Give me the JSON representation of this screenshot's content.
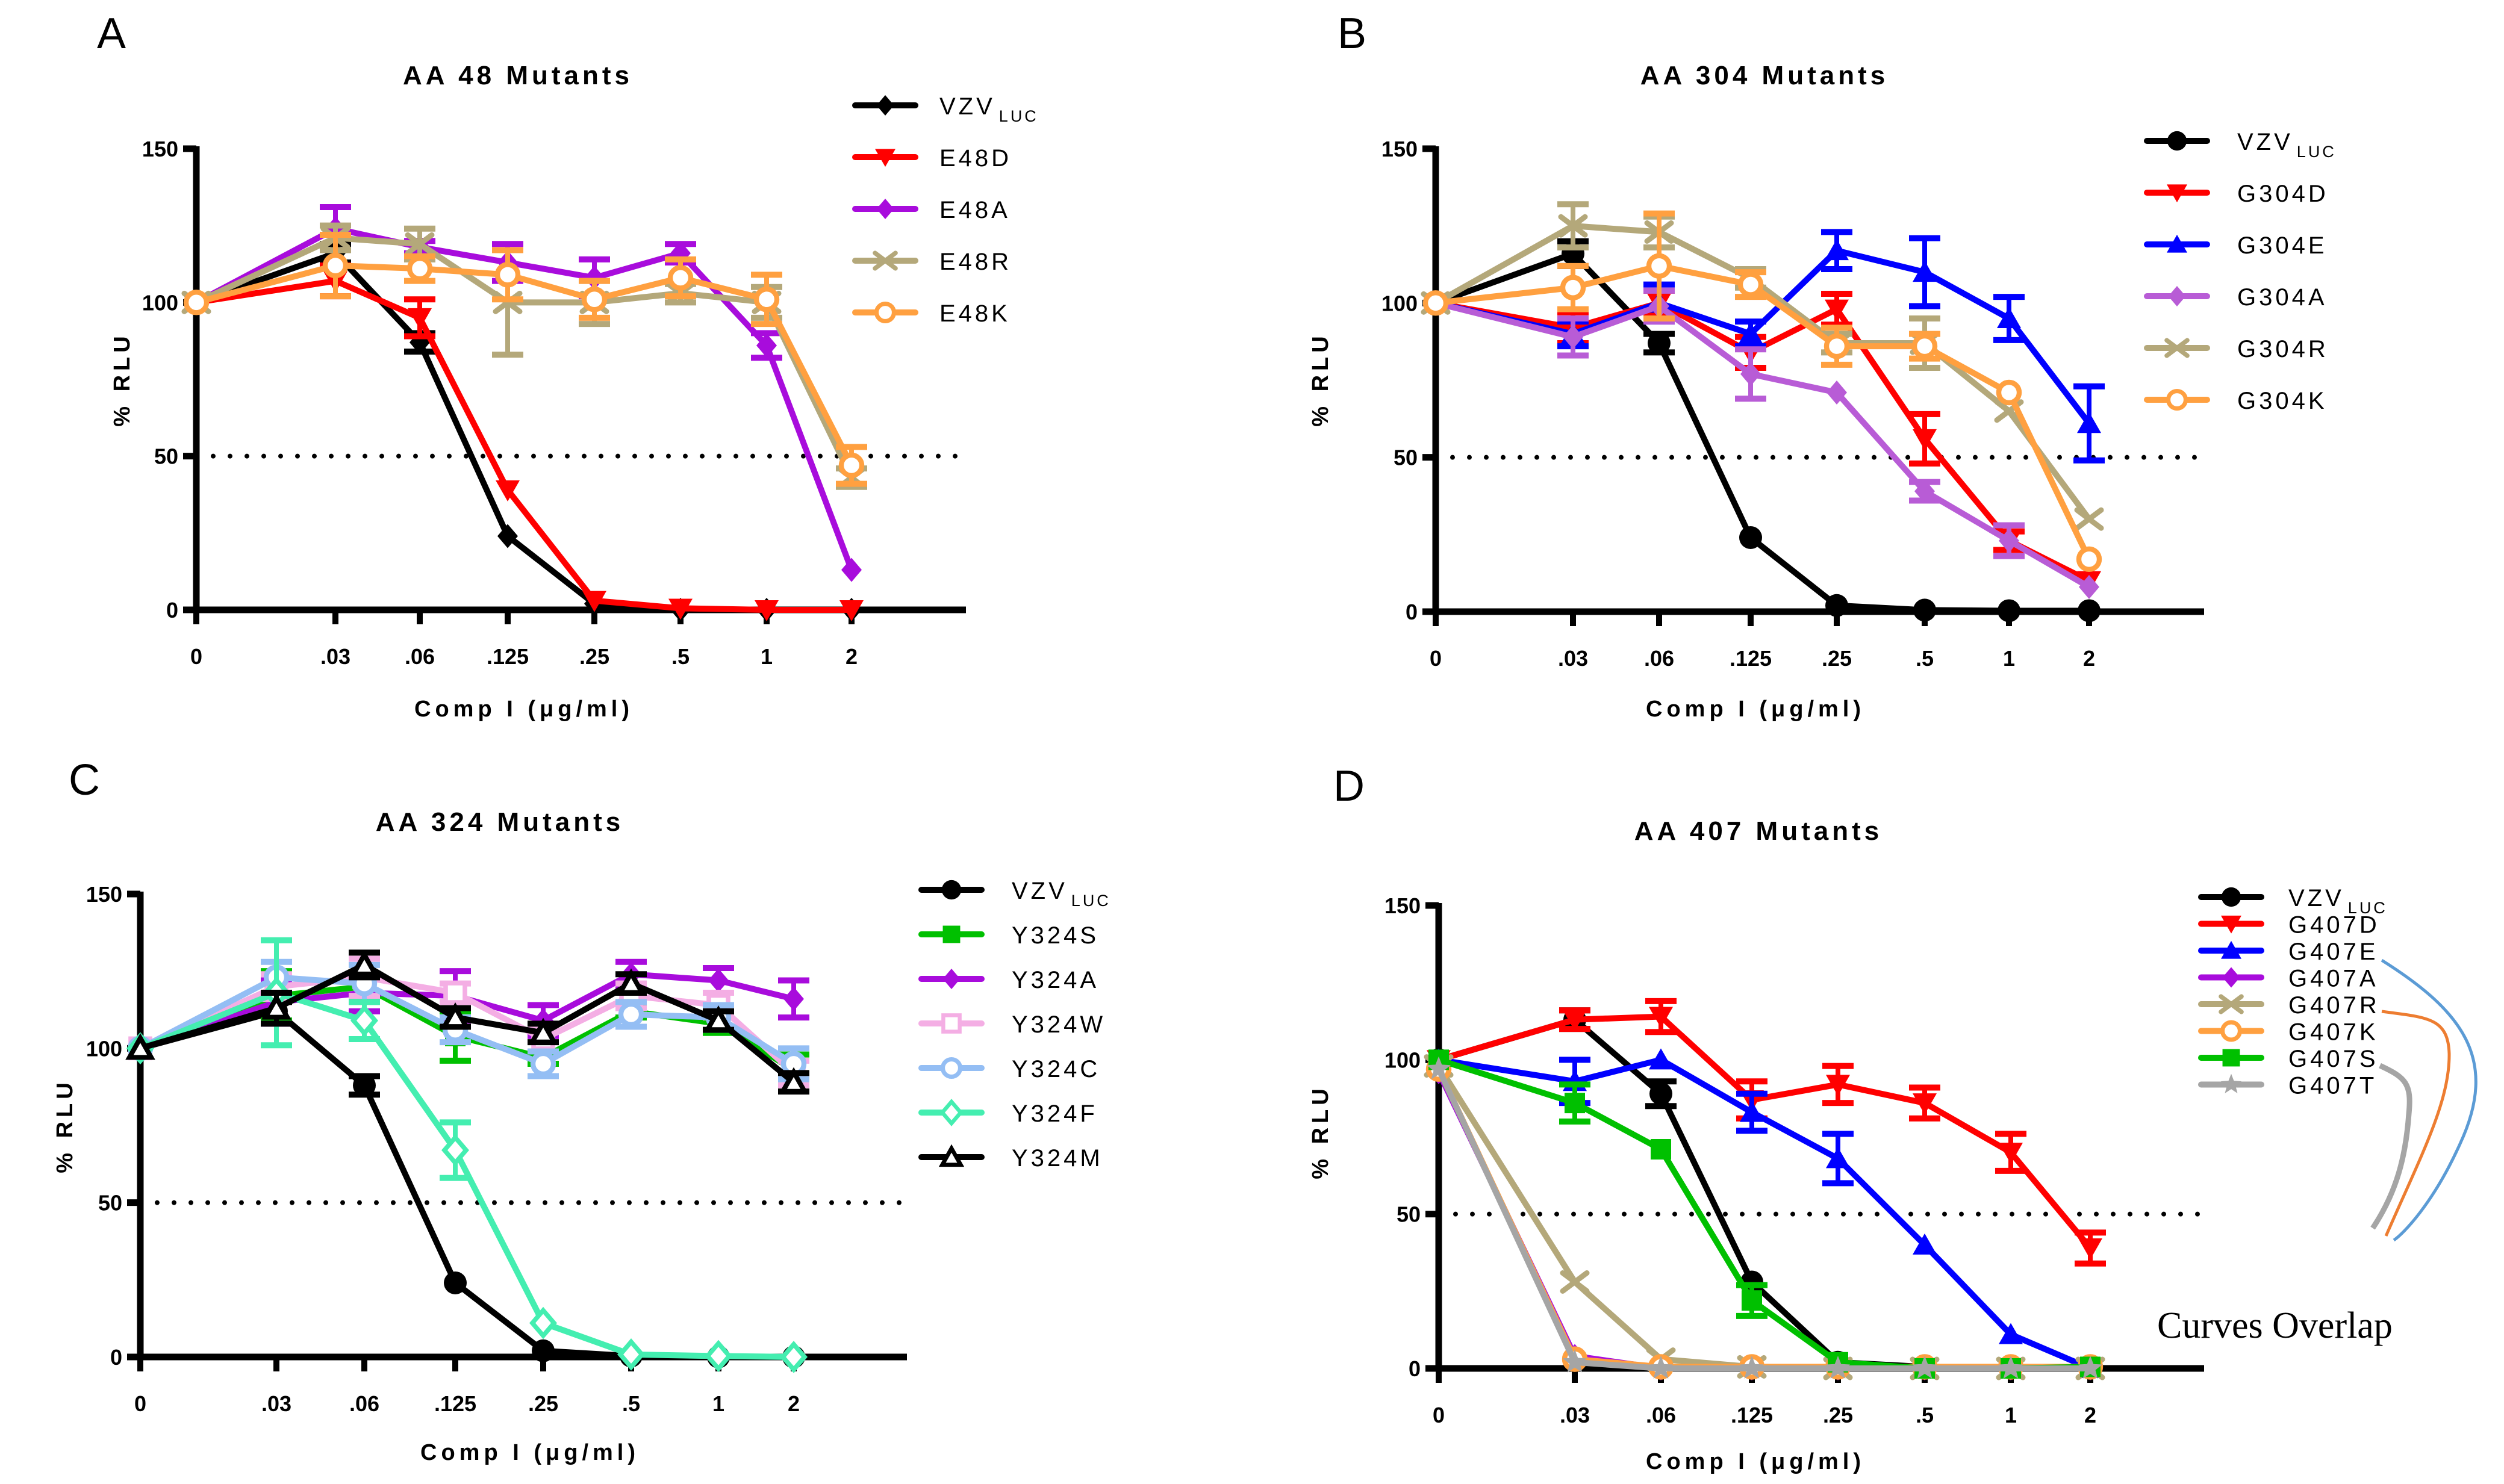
{
  "figure": {
    "panels": [
      "A",
      "B",
      "C",
      "D"
    ]
  },
  "chart_data": [
    {
      "panel": "A",
      "type": "line",
      "title": "AA 48 Mutants",
      "xlabel": "Comp I (μg/ml)",
      "ylabel": "% RLU",
      "x": [
        "0",
        ".03",
        ".06",
        ".125",
        ".25",
        ".5",
        "1",
        "2"
      ],
      "yticks": [
        "0",
        "50",
        "100",
        "150"
      ],
      "ylim": [
        0,
        150
      ],
      "reference_line": {
        "y": 50,
        "style": "dotted"
      },
      "legend_position": "top-right",
      "series": [
        {
          "name": "VZV",
          "subscript": "LUC",
          "color": "#000000",
          "marker": "diamond-filled",
          "values": [
            100,
            116,
            87,
            24,
            2,
            0,
            0,
            0
          ],
          "errors": [
            0,
            3,
            3,
            0,
            0,
            0,
            0,
            0
          ]
        },
        {
          "name": "E48D",
          "subscript": "",
          "color": "#FF0000",
          "marker": "triangle-down-filled",
          "values": [
            100,
            107,
            95,
            39,
            3,
            0.5,
            0,
            0
          ],
          "errors": [
            0,
            5,
            6,
            0,
            0,
            0,
            0,
            0
          ]
        },
        {
          "name": "E48A",
          "subscript": "",
          "color": "#A80CDC",
          "marker": "diamond-filled",
          "values": [
            100,
            124,
            118,
            113,
            108,
            116,
            86,
            13
          ],
          "errors": [
            0,
            7,
            2,
            6,
            6,
            3,
            4,
            0
          ]
        },
        {
          "name": "E48R",
          "subscript": "",
          "color": "#B4A87A",
          "marker": "x",
          "values": [
            100,
            121,
            119,
            100,
            100,
            103,
            100,
            43
          ],
          "errors": [
            0,
            4,
            5,
            17,
            7,
            3,
            5,
            3
          ]
        },
        {
          "name": "E48K",
          "subscript": "",
          "color": "#FFA040",
          "marker": "circle-open",
          "values": [
            100,
            112,
            111,
            109,
            101,
            108,
            101,
            47
          ],
          "errors": [
            0,
            10,
            4,
            8,
            6,
            6,
            8,
            6
          ]
        }
      ]
    },
    {
      "panel": "B",
      "type": "line",
      "title": "AA 304 Mutants",
      "xlabel": "Comp I (μg/ml)",
      "ylabel": "% RLU",
      "x": [
        "0",
        ".03",
        ".06",
        ".125",
        ".25",
        ".5",
        "1",
        "2"
      ],
      "yticks": [
        "0",
        "50",
        "100",
        "150"
      ],
      "ylim": [
        0,
        150
      ],
      "reference_line": {
        "y": 50,
        "style": "dotted"
      },
      "legend_position": "top-right",
      "series": [
        {
          "name": "VZV",
          "subscript": "LUC",
          "color": "#000000",
          "marker": "circle-filled",
          "values": [
            100,
            116,
            87,
            24,
            2,
            0.5,
            0.3,
            0.3
          ],
          "errors": [
            0,
            4,
            3,
            0,
            0,
            0,
            0,
            0
          ]
        },
        {
          "name": "G304D",
          "subscript": "",
          "color": "#FF0000",
          "marker": "triangle-down-filled",
          "values": [
            100,
            92,
            100,
            84,
            98,
            56,
            23,
            10
          ],
          "errors": [
            0,
            5,
            4,
            5,
            5,
            8,
            3,
            0
          ]
        },
        {
          "name": "G304E",
          "subscript": "",
          "color": "#0000FF",
          "marker": "triangle-up-filled",
          "values": [
            100,
            90,
            100,
            90,
            117,
            110,
            95,
            61
          ],
          "errors": [
            0,
            4,
            6,
            4,
            6,
            11,
            7,
            12
          ]
        },
        {
          "name": "G304A",
          "subscript": "",
          "color": "#B85CD6",
          "marker": "diamond-filled",
          "values": [
            100,
            89,
            99,
            77,
            71,
            39,
            23,
            8
          ],
          "errors": [
            0,
            6,
            5,
            8,
            0,
            3,
            5,
            0
          ]
        },
        {
          "name": "G304R",
          "subscript": "",
          "color": "#B4A87A",
          "marker": "x",
          "values": [
            100,
            125,
            123,
            108,
            87,
            87,
            65,
            30
          ],
          "errors": [
            0,
            7,
            5,
            3,
            3,
            8,
            0,
            0
          ]
        },
        {
          "name": "G304K",
          "subscript": "",
          "color": "#FFA040",
          "marker": "circle-open",
          "values": [
            100,
            105,
            112,
            106,
            86,
            86,
            71,
            17
          ],
          "errors": [
            0,
            7,
            17,
            4,
            6,
            4,
            0,
            0
          ]
        }
      ]
    },
    {
      "panel": "C",
      "type": "line",
      "title": "AA 324 Mutants",
      "xlabel": "Comp I (μg/ml)",
      "ylabel": "% RLU",
      "x": [
        "0",
        ".03",
        ".06",
        ".125",
        ".25",
        ".5",
        "1",
        "2"
      ],
      "yticks": [
        "0",
        "50",
        "100",
        "150"
      ],
      "ylim": [
        0,
        150
      ],
      "reference_line": {
        "y": 50,
        "style": "dotted"
      },
      "legend_position": "top-right",
      "series": [
        {
          "name": "VZV",
          "subscript": "LUC",
          "color": "#000000",
          "marker": "circle-filled",
          "values": [
            100,
            112,
            88,
            24,
            2,
            0.3,
            0,
            0
          ],
          "errors": [
            0,
            3,
            3,
            0,
            0,
            0,
            0,
            0
          ]
        },
        {
          "name": "Y324S",
          "subscript": "",
          "color": "#00C000",
          "marker": "square-filled",
          "values": [
            100,
            117,
            120,
            104,
            97,
            112,
            108,
            93
          ],
          "errors": [
            0,
            8,
            4,
            8,
            2,
            2,
            3,
            5
          ]
        },
        {
          "name": "Y324A",
          "subscript": "",
          "color": "#A80CDC",
          "marker": "diamond-filled",
          "values": [
            100,
            115,
            118,
            117,
            109,
            124,
            122,
            116
          ],
          "errors": [
            0,
            7,
            6,
            8,
            5,
            4,
            4,
            6
          ]
        },
        {
          "name": "Y324W",
          "subscript": "",
          "color": "#F4AEE4",
          "marker": "square-open",
          "values": [
            100,
            120,
            123,
            118,
            103,
            117,
            114,
            92
          ],
          "errors": [
            0,
            4,
            6,
            3,
            4,
            4,
            4,
            4
          ]
        },
        {
          "name": "Y324C",
          "subscript": "",
          "color": "#94BEF4",
          "marker": "circle-open",
          "values": [
            100,
            123,
            121,
            106,
            95,
            111,
            110,
            95
          ],
          "errors": [
            0,
            5,
            6,
            4,
            4,
            4,
            4,
            5
          ]
        },
        {
          "name": "Y324F",
          "subscript": "",
          "color": "#44EEB0",
          "marker": "diamond-open",
          "values": [
            100,
            118,
            109,
            67,
            11,
            0.8,
            0.3,
            0
          ],
          "errors": [
            0,
            17,
            6,
            9,
            0,
            0,
            0,
            0
          ]
        },
        {
          "name": "Y324M",
          "subscript": "",
          "color": "#000000",
          "marker": "triangle-up-open",
          "values": [
            100,
            113,
            127,
            110,
            105,
            121,
            109,
            89
          ],
          "errors": [
            0,
            5,
            4,
            3,
            3,
            3,
            3,
            3
          ]
        }
      ]
    },
    {
      "panel": "D",
      "type": "line",
      "title": "AA 407 Mutants",
      "xlabel": "Comp I (μg/ml)",
      "ylabel": "% RLU",
      "x": [
        "0",
        ".03",
        ".06",
        ".125",
        ".25",
        ".5",
        "1",
        "2"
      ],
      "yticks": [
        "0",
        "50",
        "100",
        "150"
      ],
      "ylim": [
        0,
        150
      ],
      "reference_line": {
        "y": 50,
        "style": "dotted"
      },
      "legend_position": "top-right",
      "annotation": "Curves Overlap",
      "annotation_targets": [
        "G407A",
        "G407K",
        "G407T"
      ],
      "annotation_colors": [
        "#5B9BD5",
        "#ED7D31",
        "#A5A5A5"
      ],
      "series": [
        {
          "name": "VZV",
          "subscript": "LUC",
          "color": "#000000",
          "marker": "circle-filled",
          "values": [
            100,
            113,
            89,
            28,
            2,
            0.5,
            0.3,
            0.3
          ],
          "errors": [
            0,
            3,
            4,
            0,
            0,
            0,
            0,
            0
          ]
        },
        {
          "name": "G407D",
          "subscript": "",
          "color": "#FF0000",
          "marker": "triangle-down-filled",
          "values": [
            100,
            113,
            114,
            87,
            92,
            86,
            70,
            39
          ],
          "errors": [
            0,
            3,
            5,
            6,
            6,
            5,
            6,
            5
          ]
        },
        {
          "name": "G407E",
          "subscript": "",
          "color": "#0000FF",
          "marker": "triangle-up-filled",
          "values": [
            100,
            93,
            100,
            83,
            68,
            40,
            11,
            0
          ],
          "errors": [
            0,
            7,
            0,
            6,
            8,
            0,
            0,
            0
          ]
        },
        {
          "name": "G407A",
          "subscript": "",
          "color": "#A80CDC",
          "marker": "diamond-filled",
          "values": [
            96,
            4,
            0,
            0,
            0,
            0,
            0,
            0
          ],
          "errors": [
            0,
            0,
            0,
            0,
            0,
            0,
            0,
            0
          ]
        },
        {
          "name": "G407R",
          "subscript": "",
          "color": "#B4A87A",
          "marker": "x",
          "values": [
            98,
            28,
            3,
            0.5,
            0,
            0,
            0,
            0
          ],
          "errors": [
            0,
            0,
            0,
            0,
            0,
            0,
            0,
            0
          ]
        },
        {
          "name": "G407K",
          "subscript": "",
          "color": "#FFA040",
          "marker": "circle-open",
          "values": [
            97,
            3,
            0.5,
            0.5,
            0.5,
            0.5,
            0.5,
            0.5
          ],
          "errors": [
            0,
            0,
            0,
            0,
            0,
            0,
            0,
            0
          ]
        },
        {
          "name": "G407S",
          "subscript": "",
          "color": "#00C000",
          "marker": "square-filled",
          "values": [
            100,
            86,
            71,
            22,
            2,
            0,
            0,
            0.5
          ],
          "errors": [
            0,
            6,
            0,
            5,
            0,
            0,
            0,
            0
          ]
        },
        {
          "name": "G407T",
          "subscript": "",
          "color": "#A5A5A5",
          "marker": "star",
          "values": [
            97,
            2,
            0,
            0,
            0,
            0,
            0,
            0
          ],
          "errors": [
            0,
            0,
            0,
            0,
            0,
            0,
            0,
            0
          ]
        }
      ]
    }
  ]
}
